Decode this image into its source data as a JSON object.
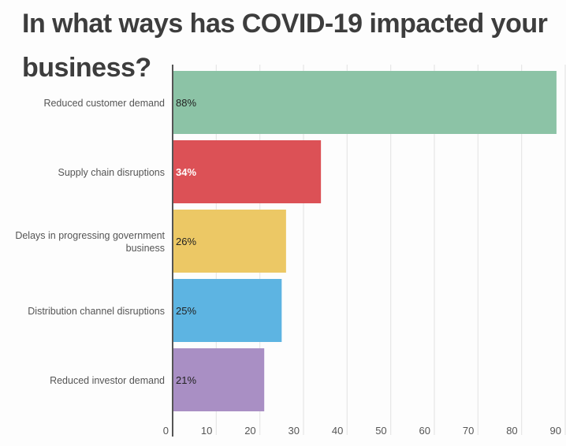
{
  "chart_data": {
    "type": "bar",
    "orientation": "horizontal",
    "title": "In what ways has COVID-19 impacted your business?",
    "categories": [
      "Reduced customer demand",
      "Supply chain disruptions",
      "Delays in progressing government business",
      "Distribution channel disruptions",
      "Reduced investor demand"
    ],
    "category_lines": [
      [
        "Reduced customer demand"
      ],
      [
        "Supply chain disruptions"
      ],
      [
        "Delays in progressing government",
        "business"
      ],
      [
        "Distribution channel disruptions"
      ],
      [
        "Reduced investor demand"
      ]
    ],
    "values": [
      88,
      34,
      26,
      25,
      21
    ],
    "data_labels": [
      "88%",
      "34%",
      "26%",
      "25%",
      "21%"
    ],
    "colors": [
      "#8cc3a6",
      "#dc5156",
      "#ecc865",
      "#5db4e2",
      "#a98fc4"
    ],
    "label_colors": [
      "#222222",
      "#ffffff",
      "#222222",
      "#222222",
      "#222222"
    ],
    "xlabel": "",
    "ylabel": "",
    "xlim": [
      0,
      90
    ],
    "xticks": [
      0,
      10,
      20,
      30,
      40,
      50,
      60,
      70,
      80,
      90
    ],
    "grid": true,
    "legend": "none"
  }
}
